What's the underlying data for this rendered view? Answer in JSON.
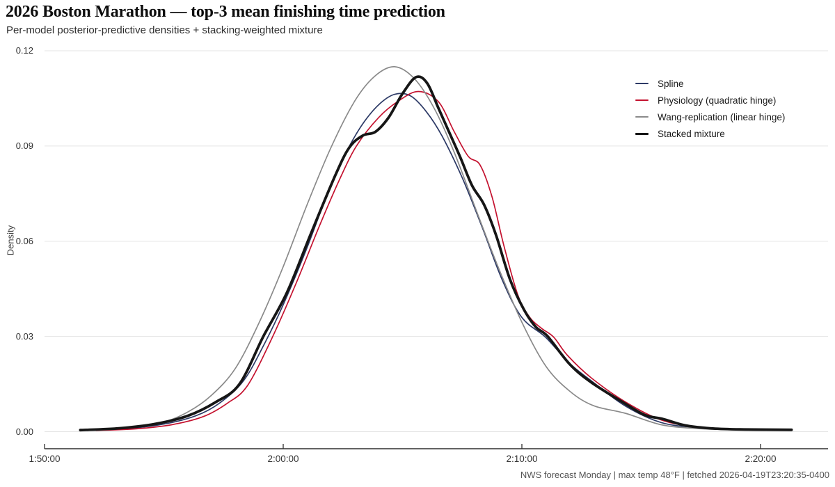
{
  "title": "2026 Boston Marathon — top-3 mean finishing time prediction",
  "subtitle": "Per-model posterior-predictive densities + stacking-weighted mixture",
  "footer": {
    "caption": "NWS forecast Monday | max temp 48°F | fetched 2026-04-19T23:20:35-0400"
  },
  "colors": {
    "axis_line": "#2f2f2f",
    "gridline": "#e4e4e4",
    "tick_label": "#333333",
    "footer_text": "#555555",
    "background": "#ffffff"
  },
  "chart_data": {
    "type": "line",
    "title": "2026 Boston Marathon — top-3 mean finishing time prediction",
    "subtitle": "Per-model posterior-predictive densities + stacking-weighted mixture",
    "xlabel": "",
    "ylabel": "Density",
    "grid": "horizontal",
    "legend_position": "top-right",
    "x_axis": {
      "unit": "finish time (h:mm:ss), stored as seconds",
      "range": [
        6600,
        8450
      ],
      "ticks": [
        {
          "value": 6600,
          "label": "1:50:00"
        },
        {
          "value": 7200,
          "label": "2:00:00"
        },
        {
          "value": 7800,
          "label": "2:10:00"
        },
        {
          "value": 8400,
          "label": "2:20:00"
        }
      ]
    },
    "y_axis": {
      "range": [
        0,
        0.12
      ],
      "ticks": [
        {
          "value": 0.0,
          "label": "0.00"
        },
        {
          "value": 0.03,
          "label": "0.03"
        },
        {
          "value": 0.06,
          "label": "0.06"
        },
        {
          "value": 0.09,
          "label": "0.09"
        },
        {
          "value": 0.12,
          "label": "0.12"
        }
      ]
    },
    "series": [
      {
        "name": "Spline",
        "color": "#2d3a66",
        "line_width": 1.7,
        "points": [
          [
            6700,
            0.0004
          ],
          [
            6800,
            0.0009
          ],
          [
            6900,
            0.0024
          ],
          [
            6980,
            0.005
          ],
          [
            7040,
            0.009
          ],
          [
            7100,
            0.016
          ],
          [
            7150,
            0.027
          ],
          [
            7200,
            0.04
          ],
          [
            7260,
            0.058
          ],
          [
            7320,
            0.078
          ],
          [
            7360,
            0.0885
          ],
          [
            7400,
            0.097
          ],
          [
            7440,
            0.103
          ],
          [
            7480,
            0.1063
          ],
          [
            7520,
            0.1058
          ],
          [
            7560,
            0.1008
          ],
          [
            7600,
            0.093
          ],
          [
            7650,
            0.08
          ],
          [
            7700,
            0.0645
          ],
          [
            7750,
            0.048
          ],
          [
            7800,
            0.036
          ],
          [
            7860,
            0.0297
          ],
          [
            7920,
            0.0215
          ],
          [
            7975,
            0.016
          ],
          [
            8060,
            0.0081
          ],
          [
            8150,
            0.0029
          ],
          [
            8240,
            0.0013
          ],
          [
            8340,
            0.0006
          ],
          [
            8440,
            0.0004
          ]
        ]
      },
      {
        "name": "Physiology (quadratic hinge)",
        "color": "#c4122f",
        "line_width": 1.7,
        "points": [
          [
            6730,
            0.0004
          ],
          [
            6830,
            0.0009
          ],
          [
            6920,
            0.0022
          ],
          [
            7000,
            0.0048
          ],
          [
            7060,
            0.009
          ],
          [
            7110,
            0.0145
          ],
          [
            7170,
            0.029
          ],
          [
            7230,
            0.046
          ],
          [
            7290,
            0.0645
          ],
          [
            7340,
            0.079
          ],
          [
            7384,
            0.09
          ],
          [
            7440,
            0.099
          ],
          [
            7490,
            0.1042
          ],
          [
            7540,
            0.1072
          ],
          [
            7590,
            0.104
          ],
          [
            7630,
            0.0945
          ],
          [
            7665,
            0.0868
          ],
          [
            7695,
            0.084
          ],
          [
            7725,
            0.074
          ],
          [
            7755,
            0.0585
          ],
          [
            7790,
            0.043
          ],
          [
            7820,
            0.036
          ],
          [
            7850,
            0.0325
          ],
          [
            7880,
            0.0298
          ],
          [
            7915,
            0.024
          ],
          [
            7975,
            0.0169
          ],
          [
            8060,
            0.0094
          ],
          [
            8150,
            0.0037
          ],
          [
            8240,
            0.0015
          ],
          [
            8340,
            0.0007
          ],
          [
            8440,
            0.0004
          ]
        ]
      },
      {
        "name": "Wang-replication (linear hinge)",
        "color": "#8a8a8a",
        "line_width": 1.7,
        "points": [
          [
            6690,
            0.0005
          ],
          [
            6790,
            0.001
          ],
          [
            6890,
            0.0027
          ],
          [
            6960,
            0.0062
          ],
          [
            7020,
            0.0115
          ],
          [
            7080,
            0.02
          ],
          [
            7140,
            0.0345
          ],
          [
            7200,
            0.052
          ],
          [
            7260,
            0.0715
          ],
          [
            7320,
            0.0895
          ],
          [
            7380,
            0.1042
          ],
          [
            7430,
            0.112
          ],
          [
            7480,
            0.115
          ],
          [
            7530,
            0.1112
          ],
          [
            7580,
            0.1018
          ],
          [
            7630,
            0.088
          ],
          [
            7690,
            0.0682
          ],
          [
            7740,
            0.052
          ],
          [
            7800,
            0.0345
          ],
          [
            7860,
            0.0207
          ],
          [
            7920,
            0.0128
          ],
          [
            7980,
            0.0082
          ],
          [
            8060,
            0.0058
          ],
          [
            8150,
            0.0022
          ],
          [
            8240,
            0.001
          ],
          [
            8340,
            0.0006
          ],
          [
            8430,
            0.0004
          ]
        ]
      },
      {
        "name": "Stacked mixture",
        "color": "#161616",
        "line_width": 3.8,
        "points": [
          [
            6690,
            0.0005
          ],
          [
            6790,
            0.0011
          ],
          [
            6880,
            0.0025
          ],
          [
            6960,
            0.005
          ],
          [
            7030,
            0.0093
          ],
          [
            7090,
            0.015
          ],
          [
            7150,
            0.03
          ],
          [
            7210,
            0.044
          ],
          [
            7270,
            0.0625
          ],
          [
            7330,
            0.0805
          ],
          [
            7366,
            0.0895
          ],
          [
            7400,
            0.0933
          ],
          [
            7432,
            0.0945
          ],
          [
            7465,
            0.099
          ],
          [
            7500,
            0.1065
          ],
          [
            7534,
            0.1117
          ],
          [
            7562,
            0.1098
          ],
          [
            7590,
            0.102
          ],
          [
            7615,
            0.095
          ],
          [
            7645,
            0.0865
          ],
          [
            7675,
            0.0775
          ],
          [
            7705,
            0.0715
          ],
          [
            7735,
            0.062
          ],
          [
            7770,
            0.048
          ],
          [
            7805,
            0.0385
          ],
          [
            7835,
            0.033
          ],
          [
            7865,
            0.03
          ],
          [
            7920,
            0.0213
          ],
          [
            7975,
            0.0155
          ],
          [
            8060,
            0.0088
          ],
          [
            8110,
            0.0052
          ],
          [
            8155,
            0.004
          ],
          [
            8210,
            0.002
          ],
          [
            8280,
            0.001
          ],
          [
            8360,
            0.0007
          ],
          [
            8478,
            0.0006
          ]
        ]
      }
    ]
  }
}
